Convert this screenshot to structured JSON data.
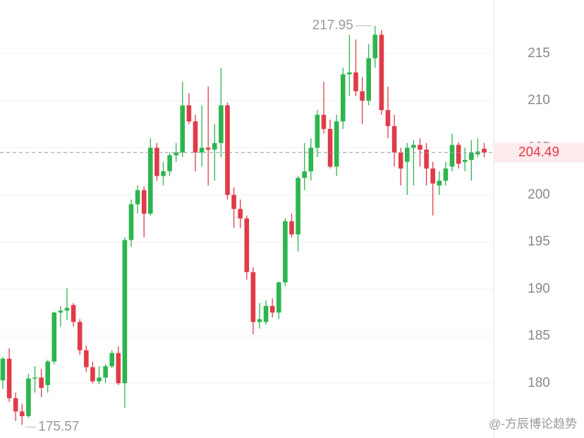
{
  "chart_data": {
    "type": "candlestick",
    "up_color": "#2db54e",
    "down_color": "#e03b48",
    "ylim": [
      174.18,
      220.69
    ],
    "yticks": [
      180,
      185,
      190,
      195,
      200,
      205,
      210,
      215
    ],
    "grid": true,
    "candles": [
      {
        "o": 180.3,
        "h": 182.8,
        "l": 179.4,
        "c": 182.6
      },
      {
        "o": 182.6,
        "h": 183.7,
        "l": 178.0,
        "c": 178.4
      },
      {
        "o": 178.4,
        "h": 179.0,
        "l": 176.0,
        "c": 177.0
      },
      {
        "o": 177.0,
        "h": 177.8,
        "l": 175.57,
        "c": 176.5
      },
      {
        "o": 176.5,
        "h": 181.0,
        "l": 176.3,
        "c": 180.5
      },
      {
        "o": 180.5,
        "h": 181.8,
        "l": 179.0,
        "c": 180.6
      },
      {
        "o": 180.6,
        "h": 181.5,
        "l": 178.5,
        "c": 179.5
      },
      {
        "o": 179.8,
        "h": 182.5,
        "l": 179.0,
        "c": 182.3
      },
      {
        "o": 182.3,
        "h": 187.6,
        "l": 182.0,
        "c": 187.5
      },
      {
        "o": 187.5,
        "h": 188.2,
        "l": 186.0,
        "c": 187.7
      },
      {
        "o": 187.7,
        "h": 190.1,
        "l": 186.7,
        "c": 188.0
      },
      {
        "o": 188.3,
        "h": 188.5,
        "l": 186.0,
        "c": 186.5
      },
      {
        "o": 186.5,
        "h": 186.8,
        "l": 183.0,
        "c": 183.5
      },
      {
        "o": 183.5,
        "h": 184.0,
        "l": 181.2,
        "c": 181.7
      },
      {
        "o": 181.7,
        "h": 182.3,
        "l": 180.0,
        "c": 180.2
      },
      {
        "o": 180.2,
        "h": 181.8,
        "l": 179.9,
        "c": 180.6
      },
      {
        "o": 180.6,
        "h": 182.0,
        "l": 180.0,
        "c": 181.8
      },
      {
        "o": 181.8,
        "h": 183.5,
        "l": 181.6,
        "c": 183.2
      },
      {
        "o": 183.2,
        "h": 183.9,
        "l": 179.8,
        "c": 180.0
      },
      {
        "o": 180.0,
        "h": 195.5,
        "l": 177.4,
        "c": 195.2
      },
      {
        "o": 195.2,
        "h": 199.5,
        "l": 194.5,
        "c": 199.0
      },
      {
        "o": 199.0,
        "h": 201.0,
        "l": 198.0,
        "c": 200.5
      },
      {
        "o": 200.5,
        "h": 200.9,
        "l": 195.5,
        "c": 198.0
      },
      {
        "o": 198.0,
        "h": 206.0,
        "l": 197.8,
        "c": 205.0
      },
      {
        "o": 205.0,
        "h": 205.5,
        "l": 201.5,
        "c": 202.0
      },
      {
        "o": 202.0,
        "h": 203.5,
        "l": 201.0,
        "c": 202.5
      },
      {
        "o": 202.5,
        "h": 204.5,
        "l": 202.0,
        "c": 204.2
      },
      {
        "o": 204.2,
        "h": 205.5,
        "l": 203.5,
        "c": 204.5
      },
      {
        "o": 204.5,
        "h": 212.0,
        "l": 204.0,
        "c": 209.5
      },
      {
        "o": 209.5,
        "h": 210.8,
        "l": 207.5,
        "c": 207.8
      },
      {
        "o": 207.8,
        "h": 208.5,
        "l": 202.5,
        "c": 204.5
      },
      {
        "o": 204.5,
        "h": 209.5,
        "l": 203.0,
        "c": 205.0
      },
      {
        "o": 205.0,
        "h": 211.5,
        "l": 201.0,
        "c": 204.8
      },
      {
        "o": 204.8,
        "h": 207.5,
        "l": 201.5,
        "c": 205.5
      },
      {
        "o": 205.5,
        "h": 213.5,
        "l": 204.0,
        "c": 209.5
      },
      {
        "o": 209.5,
        "h": 209.8,
        "l": 199.5,
        "c": 200.0
      },
      {
        "o": 200.0,
        "h": 200.8,
        "l": 196.5,
        "c": 198.5
      },
      {
        "o": 198.5,
        "h": 199.5,
        "l": 196.5,
        "c": 197.5
      },
      {
        "o": 197.5,
        "h": 197.8,
        "l": 191.0,
        "c": 191.8
      },
      {
        "o": 191.8,
        "h": 192.3,
        "l": 185.2,
        "c": 186.5
      },
      {
        "o": 186.5,
        "h": 188.5,
        "l": 185.8,
        "c": 186.8
      },
      {
        "o": 186.5,
        "h": 188.8,
        "l": 186.2,
        "c": 188.2
      },
      {
        "o": 188.2,
        "h": 189.0,
        "l": 187.0,
        "c": 187.5
      },
      {
        "o": 187.5,
        "h": 190.8,
        "l": 186.8,
        "c": 190.7
      },
      {
        "o": 190.7,
        "h": 197.5,
        "l": 190.3,
        "c": 197.2
      },
      {
        "o": 197.2,
        "h": 198.0,
        "l": 195.5,
        "c": 195.8
      },
      {
        "o": 195.8,
        "h": 202.0,
        "l": 194.0,
        "c": 201.8
      },
      {
        "o": 201.8,
        "h": 205.5,
        "l": 200.5,
        "c": 202.5
      },
      {
        "o": 202.5,
        "h": 206.0,
        "l": 201.5,
        "c": 205.0
      },
      {
        "o": 205.0,
        "h": 209.0,
        "l": 204.0,
        "c": 208.5
      },
      {
        "o": 208.5,
        "h": 212.0,
        "l": 206.5,
        "c": 207.0
      },
      {
        "o": 207.0,
        "h": 208.0,
        "l": 202.8,
        "c": 203.0
      },
      {
        "o": 203.0,
        "h": 208.5,
        "l": 202.0,
        "c": 207.8
      },
      {
        "o": 207.8,
        "h": 213.5,
        "l": 207.0,
        "c": 212.8
      },
      {
        "o": 212.8,
        "h": 217.0,
        "l": 210.5,
        "c": 213.0
      },
      {
        "o": 213.0,
        "h": 216.5,
        "l": 210.5,
        "c": 211.0
      },
      {
        "o": 211.0,
        "h": 212.5,
        "l": 207.5,
        "c": 210.0
      },
      {
        "o": 210.0,
        "h": 216.0,
        "l": 209.5,
        "c": 214.5
      },
      {
        "o": 214.5,
        "h": 217.95,
        "l": 213.5,
        "c": 217.0
      },
      {
        "o": 217.0,
        "h": 217.5,
        "l": 208.5,
        "c": 209.0
      },
      {
        "o": 209.0,
        "h": 211.5,
        "l": 206.0,
        "c": 207.3
      },
      {
        "o": 207.3,
        "h": 208.5,
        "l": 203.0,
        "c": 204.5
      },
      {
        "o": 204.5,
        "h": 205.0,
        "l": 201.0,
        "c": 202.8
      },
      {
        "o": 203.5,
        "h": 205.5,
        "l": 200.0,
        "c": 205.0
      },
      {
        "o": 205.0,
        "h": 205.8,
        "l": 201.0,
        "c": 205.3
      },
      {
        "o": 205.3,
        "h": 206.0,
        "l": 203.0,
        "c": 204.8
      },
      {
        "o": 204.8,
        "h": 205.5,
        "l": 201.0,
        "c": 202.8
      },
      {
        "o": 202.8,
        "h": 203.5,
        "l": 197.8,
        "c": 201.2
      },
      {
        "o": 201.0,
        "h": 202.5,
        "l": 200.0,
        "c": 201.5
      },
      {
        "o": 201.5,
        "h": 203.5,
        "l": 201.0,
        "c": 202.8
      },
      {
        "o": 203.0,
        "h": 206.5,
        "l": 202.5,
        "c": 205.3
      },
      {
        "o": 205.3,
        "h": 205.6,
        "l": 202.8,
        "c": 203.3
      },
      {
        "o": 203.5,
        "h": 205.0,
        "l": 202.5,
        "c": 203.7
      },
      {
        "o": 203.7,
        "h": 205.8,
        "l": 201.5,
        "c": 204.5
      },
      {
        "o": 204.3,
        "h": 206.0,
        "l": 204.0,
        "c": 204.6
      },
      {
        "o": 204.9,
        "h": 205.5,
        "l": 204.0,
        "c": 204.49
      }
    ],
    "watermark": "@-方辰博论趋势"
  }
}
